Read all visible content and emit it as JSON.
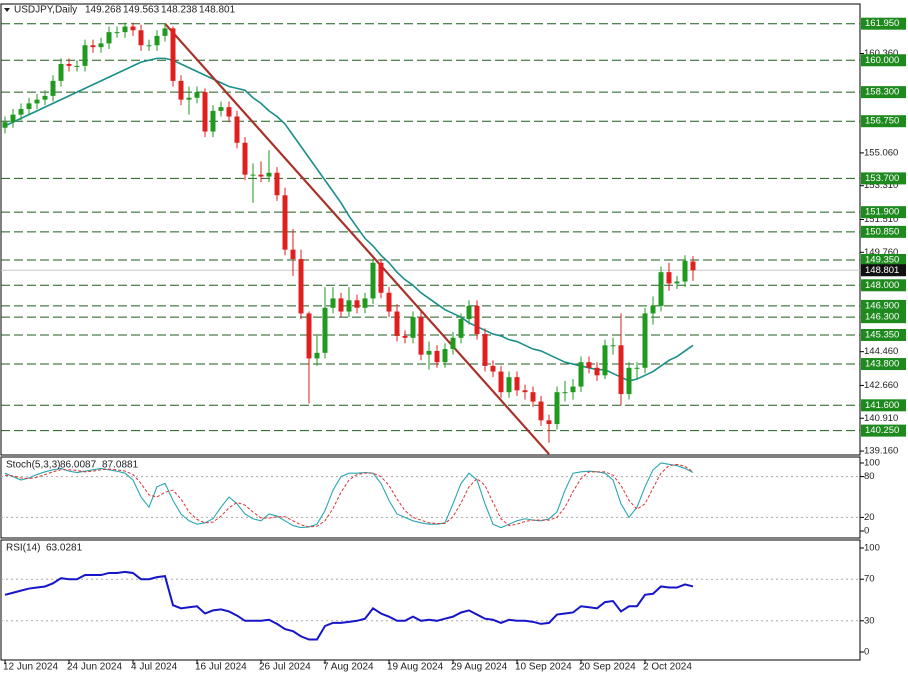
{
  "chart_data": [
    {
      "type": "candlestick",
      "title": "USDJPY,Daily",
      "categories": [
        "12 Jun 2024",
        null,
        null,
        null,
        null,
        null,
        null,
        null,
        "24 Jun 2024",
        null,
        null,
        null,
        null,
        null,
        null,
        null,
        "4 Jul 2024",
        null,
        null,
        null,
        null,
        null,
        null,
        null,
        "16 Jul 2024",
        null,
        null,
        null,
        null,
        null,
        null,
        null,
        "26 Jul 2024",
        null,
        null,
        null,
        null,
        null,
        null,
        null,
        "7 Aug 2024",
        null,
        null,
        null,
        null,
        null,
        null,
        null,
        "19 Aug 2024",
        null,
        null,
        null,
        null,
        null,
        null,
        null,
        "29 Aug 2024",
        null,
        null,
        null,
        null,
        null,
        null,
        null,
        "10 Sep 2024",
        null,
        null,
        null,
        null,
        null,
        null,
        null,
        "20 Sep 2024",
        null,
        null,
        null,
        null,
        null,
        null,
        null,
        "2 Oct 2024",
        null,
        null,
        null,
        null,
        null,
        null
      ],
      "open": [
        156.4,
        156.7,
        157.1,
        157.4,
        157.7,
        157.9,
        158.1,
        158.9,
        159.8,
        159.7,
        159.7,
        160.8,
        160.7,
        160.9,
        161.5,
        161.5,
        161.8,
        161.6,
        160.8,
        160.8,
        161.3,
        161.7,
        158.9,
        157.9,
        158.0,
        158.3,
        156.2,
        157.3,
        157.5,
        157.0,
        155.6,
        153.9,
        153.9,
        153.8,
        154.0,
        152.8,
        149.9,
        149.4,
        146.5,
        144.1,
        144.4,
        146.8,
        147.3,
        146.6,
        147.2,
        146.8,
        147.3,
        149.2,
        147.6,
        146.6,
        145.3,
        145.2,
        146.3,
        144.3,
        144.5,
        143.9,
        144.6,
        145.2,
        146.2,
        146.9,
        145.4,
        143.7,
        143.4,
        142.3,
        143.1,
        142.4,
        142.3,
        141.8,
        140.8,
        140.6,
        142.3,
        142.3,
        142.6,
        143.9,
        143.6,
        143.2,
        144.8,
        144.8,
        142.2,
        143.6,
        143.6,
        146.5,
        146.9,
        148.7,
        148.1,
        148.2,
        149.268
      ],
      "high": [
        157.0,
        157.4,
        157.7,
        158.0,
        158.2,
        158.4,
        159.2,
        160.1,
        160.1,
        160.0,
        161.1,
        161.1,
        161.2,
        161.8,
        161.8,
        162.0,
        162.0,
        161.9,
        161.1,
        161.6,
        161.95,
        161.8,
        159.2,
        158.6,
        158.6,
        158.5,
        157.6,
        157.8,
        157.8,
        157.3,
        155.9,
        154.5,
        154.6,
        155.2,
        154.3,
        153.2,
        151.0,
        149.9,
        146.6,
        145.3,
        147.9,
        147.9,
        147.6,
        147.9,
        147.5,
        147.6,
        149.4,
        149.4,
        147.9,
        147.0,
        145.6,
        146.6,
        146.6,
        145.0,
        144.8,
        144.9,
        145.5,
        146.5,
        147.2,
        147.2,
        145.7,
        144.0,
        143.7,
        143.4,
        143.4,
        142.7,
        142.6,
        142.1,
        141.1,
        142.6,
        142.9,
        143.0,
        144.2,
        144.2,
        143.9,
        145.1,
        145.2,
        146.5,
        143.9,
        143.9,
        146.8,
        147.4,
        149.0,
        149.2,
        148.5,
        149.6,
        149.563
      ],
      "low": [
        156.1,
        156.4,
        156.8,
        157.1,
        157.4,
        157.6,
        157.8,
        158.6,
        159.4,
        159.4,
        159.4,
        160.4,
        160.4,
        160.6,
        161.2,
        161.2,
        161.3,
        160.5,
        160.5,
        160.5,
        161.0,
        158.6,
        157.6,
        157.1,
        157.7,
        155.9,
        155.9,
        157.0,
        156.7,
        155.3,
        153.6,
        152.4,
        153.5,
        153.5,
        152.5,
        149.6,
        148.5,
        146.2,
        141.7,
        143.7,
        144.1,
        146.5,
        146.3,
        146.3,
        146.5,
        146.5,
        147.0,
        147.3,
        146.3,
        145.0,
        144.9,
        144.9,
        144.0,
        143.5,
        143.6,
        143.6,
        144.3,
        144.9,
        145.9,
        145.1,
        143.4,
        143.1,
        142.0,
        142.0,
        142.1,
        141.9,
        141.5,
        140.5,
        139.6,
        140.3,
        141.8,
        141.9,
        142.3,
        143.3,
        142.9,
        143.0,
        144.3,
        141.6,
        141.9,
        143.0,
        143.3,
        145.9,
        146.6,
        147.7,
        147.8,
        147.9,
        148.238
      ],
      "close": [
        156.7,
        157.1,
        157.4,
        157.7,
        157.9,
        158.1,
        158.9,
        159.8,
        159.7,
        159.7,
        160.8,
        160.7,
        160.9,
        161.5,
        161.5,
        161.8,
        161.6,
        160.8,
        160.8,
        161.3,
        161.7,
        158.9,
        157.9,
        158.0,
        158.3,
        156.2,
        157.3,
        157.5,
        157.0,
        155.6,
        153.9,
        153.9,
        153.8,
        154.0,
        152.8,
        149.9,
        149.4,
        146.5,
        144.1,
        144.4,
        146.8,
        147.3,
        146.6,
        147.2,
        146.8,
        147.3,
        149.2,
        147.6,
        146.6,
        145.3,
        145.2,
        146.3,
        144.3,
        144.5,
        143.9,
        144.6,
        145.2,
        146.2,
        146.9,
        145.4,
        143.7,
        143.4,
        142.3,
        143.1,
        142.4,
        142.3,
        141.8,
        140.8,
        140.6,
        142.3,
        142.3,
        142.6,
        143.9,
        143.6,
        143.2,
        144.8,
        144.8,
        142.2,
        143.6,
        143.6,
        146.5,
        146.9,
        148.7,
        148.1,
        148.2,
        149.3,
        148.801
      ],
      "up_color": "#1f9a1f",
      "down_color": "#e01f1f",
      "ma": {
        "color": "#1a8f8a",
        "values": [
          156.5,
          156.7,
          156.9,
          157.1,
          157.3,
          157.5,
          157.7,
          157.9,
          158.1,
          158.3,
          158.5,
          158.7,
          158.9,
          159.1,
          159.3,
          159.5,
          159.7,
          159.9,
          160.0,
          160.1,
          160.1,
          160.0,
          159.8,
          159.6,
          159.4,
          159.2,
          159.0,
          158.8,
          158.6,
          158.5,
          158.4,
          158.0,
          157.7,
          157.3,
          157.0,
          156.6,
          156.0,
          155.4,
          154.8,
          154.2,
          153.6,
          153.0,
          152.4,
          151.7,
          151.1,
          150.5,
          150.1,
          149.6,
          149.2,
          148.7,
          148.3,
          148.0,
          147.6,
          147.3,
          147.0,
          146.7,
          146.5,
          146.3,
          146.0,
          145.8,
          145.6,
          145.4,
          145.3,
          145.1,
          145.0,
          144.8,
          144.6,
          144.5,
          144.3,
          144.1,
          143.9,
          143.8,
          143.7,
          143.6,
          143.5,
          143.5,
          143.3,
          143.1,
          142.9,
          143.0,
          143.2,
          143.4,
          143.7,
          144.0,
          144.2,
          144.5,
          144.8
        ]
      },
      "trendline": {
        "color": "#a8322a",
        "from": [
          20,
          161.95
        ],
        "to": [
          68,
          139.0
        ]
      },
      "levels": [
        {
          "value": 161.95,
          "label": "161.950"
        },
        {
          "value": 160.0,
          "label": "160.000"
        },
        {
          "value": 158.3,
          "label": "158.300"
        },
        {
          "value": 156.75,
          "label": "156.750"
        },
        {
          "value": 153.7,
          "label": "153.700"
        },
        {
          "value": 151.9,
          "label": "151.900"
        },
        {
          "value": 150.85,
          "label": "150.850"
        },
        {
          "value": 149.35,
          "label": "149.350"
        },
        {
          "value": 148.0,
          "label": "148.000"
        },
        {
          "value": 146.9,
          "label": "146.900"
        },
        {
          "value": 146.3,
          "label": "146.300"
        },
        {
          "value": 145.35,
          "label": "145.350"
        },
        {
          "value": 143.8,
          "label": "143.800"
        },
        {
          "value": 141.6,
          "label": "141.600"
        },
        {
          "value": 140.25,
          "label": "140.250"
        }
      ],
      "level_color": "#1e8a1e",
      "ylim": [
        138.95,
        163.0
      ],
      "yticks": [
        {
          "value": 160.36,
          "label": "160.360"
        },
        {
          "value": 155.06,
          "label": "155.060"
        },
        {
          "value": 153.31,
          "label": "153.310"
        },
        {
          "value": 151.51,
          "label": "151.510"
        },
        {
          "value": 149.76,
          "label": "149.760"
        },
        {
          "value": 144.46,
          "label": "144.460"
        },
        {
          "value": 142.66,
          "label": "142.660"
        },
        {
          "value": 140.91,
          "label": "140.910"
        },
        {
          "value": 139.16,
          "label": "139.160"
        }
      ]
    },
    {
      "type": "line",
      "title": "Stoch(5,3,3)",
      "series": [
        {
          "color": "#2aa6b0",
          "values": [
            85,
            80,
            75,
            78,
            83,
            87,
            90,
            92,
            88,
            86,
            88,
            90,
            92,
            90,
            88,
            85,
            75,
            50,
            35,
            65,
            70,
            45,
            25,
            15,
            10,
            12,
            18,
            35,
            50,
            40,
            25,
            18,
            15,
            25,
            22,
            15,
            8,
            5,
            6,
            10,
            30,
            60,
            80,
            85,
            85,
            86,
            85,
            70,
            45,
            25,
            20,
            15,
            12,
            10,
            10,
            12,
            40,
            70,
            85,
            75,
            40,
            10,
            5,
            10,
            15,
            18,
            16,
            15,
            18,
            28,
            60,
            85,
            87,
            88,
            87,
            85,
            75,
            40,
            20,
            35,
            65,
            90,
            100,
            98,
            96,
            92,
            86.0087
          ]
        },
        {
          "color": "#e03030",
          "dashed": true,
          "values": [
            82,
            81,
            78,
            77,
            79,
            83,
            87,
            90,
            90,
            89,
            87,
            88,
            90,
            91,
            90,
            88,
            83,
            70,
            53,
            50,
            57,
            60,
            47,
            28,
            17,
            12,
            13,
            22,
            34,
            42,
            38,
            28,
            19,
            19,
            21,
            21,
            15,
            9,
            6,
            7,
            15,
            33,
            57,
            75,
            83,
            85,
            85,
            80,
            67,
            47,
            30,
            20,
            16,
            12,
            11,
            11,
            21,
            41,
            65,
            77,
            67,
            42,
            18,
            8,
            10,
            14,
            16,
            16,
            16,
            20,
            35,
            58,
            77,
            87,
            87,
            87,
            82,
            67,
            45,
            32,
            40,
            63,
            85,
            96,
            98,
            95,
            87.0881
          ]
        }
      ],
      "ylim": [
        -10.3,
        108.8
      ],
      "yticks": [
        0,
        20,
        80,
        100
      ],
      "levels": [
        20,
        80
      ]
    },
    {
      "type": "line",
      "title": "RSI(14)",
      "series": [
        {
          "color": "#1616c8",
          "values": [
            55,
            57,
            59,
            61,
            62,
            63,
            66,
            71,
            70,
            70,
            74,
            74,
            74,
            76,
            76,
            77,
            76,
            70,
            70,
            72,
            73,
            45,
            42,
            43,
            44,
            37,
            40,
            41,
            39,
            35,
            30,
            30,
            30,
            31,
            27,
            22,
            20,
            15,
            12,
            12,
            25,
            28,
            28,
            29,
            30,
            32,
            42,
            37,
            34,
            30,
            30,
            34,
            30,
            31,
            30,
            32,
            34,
            38,
            40,
            36,
            32,
            31,
            28,
            31,
            30,
            30,
            29,
            27,
            28,
            36,
            37,
            38,
            44,
            43,
            42,
            48,
            49,
            39,
            44,
            44,
            55,
            56,
            63,
            62,
            62,
            65,
            63.0281
          ]
        }
      ],
      "ylim": [
        -7.7,
        107.7
      ],
      "yticks": [
        0,
        30,
        70,
        100
      ],
      "levels": [
        30,
        70
      ]
    }
  ]
}
